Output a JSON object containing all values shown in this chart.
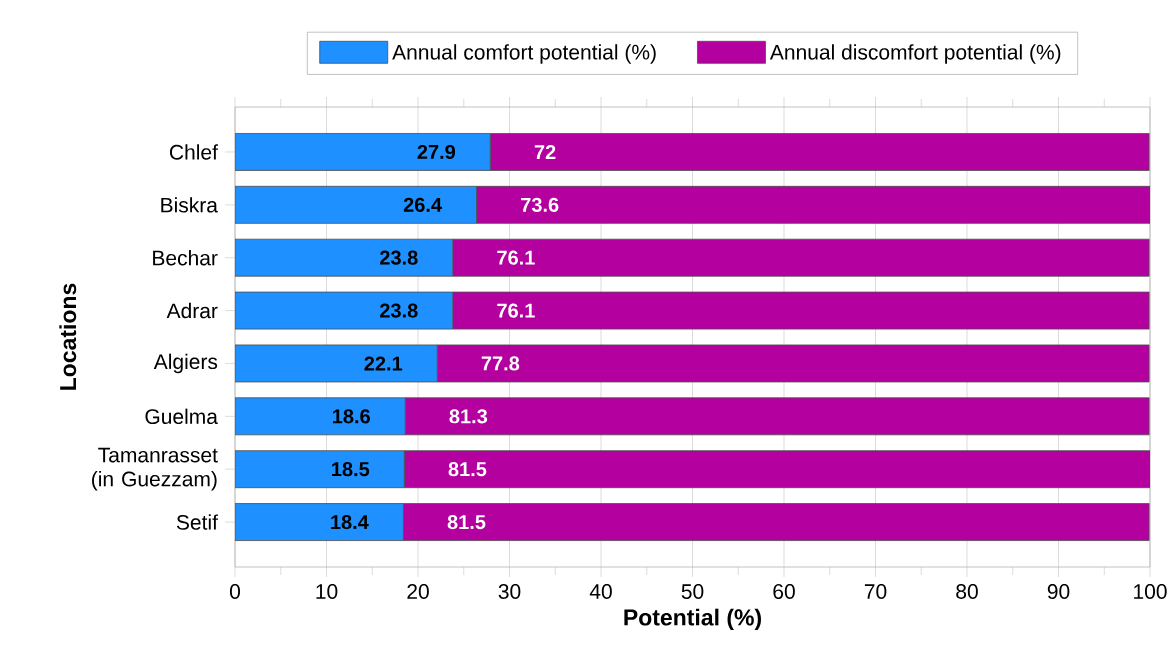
{
  "chart_data": {
    "type": "bar",
    "orientation": "horizontal",
    "stacked": true,
    "categories": [
      "Chlef",
      "Biskra",
      "Bechar",
      "Adrar",
      "Algiers",
      "Guelma",
      "Tamanrasset (in Guezzam)",
      "Setif"
    ],
    "series": [
      {
        "name": "Annual comfort potential (%)",
        "color": "#1e90ff",
        "values": [
          27.9,
          26.4,
          23.8,
          23.8,
          22.1,
          18.6,
          18.5,
          18.4
        ]
      },
      {
        "name": "Annual discomfort potential (%)",
        "color": "#b4009e",
        "values": [
          72,
          73.6,
          76.1,
          76.1,
          77.8,
          81.3,
          81.5,
          81.5
        ]
      }
    ],
    "xlim": [
      0,
      100
    ],
    "xticks": [
      0,
      10,
      20,
      30,
      40,
      50,
      60,
      70,
      80,
      90,
      100
    ],
    "xlabel": "Potential (%)",
    "ylabel": "Locations",
    "grid": "x",
    "legend": "top",
    "data_labels": true
  }
}
